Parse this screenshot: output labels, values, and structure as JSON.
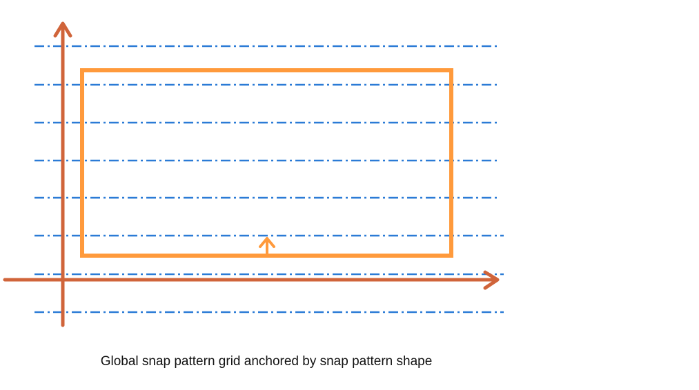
{
  "caption": "Global snap pattern grid anchored by snap pattern shape",
  "colors": {
    "grid_line": "#2b7bd6",
    "axis": "#d0643a",
    "shape": "#ff9a3c",
    "anchor_arrow": "#ff9a3c",
    "caption_text": "#111111"
  },
  "grid": {
    "line_style": "dash-dot",
    "line_count": 8
  }
}
